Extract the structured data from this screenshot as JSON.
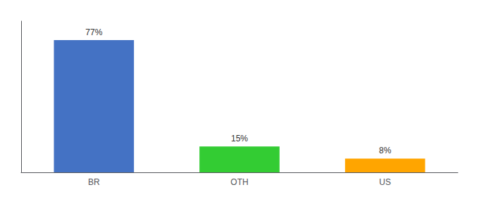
{
  "chart_data": {
    "type": "bar",
    "categories": [
      "BR",
      "OTH",
      "US"
    ],
    "values": [
      77,
      15,
      8
    ],
    "value_labels": [
      "77%",
      "15%",
      "8%"
    ],
    "colors": [
      "#4472C4",
      "#33CC33",
      "#FFA500"
    ],
    "ylim": [
      0,
      88
    ],
    "data_labels": true,
    "tick_labels": "x",
    "grid": false
  }
}
